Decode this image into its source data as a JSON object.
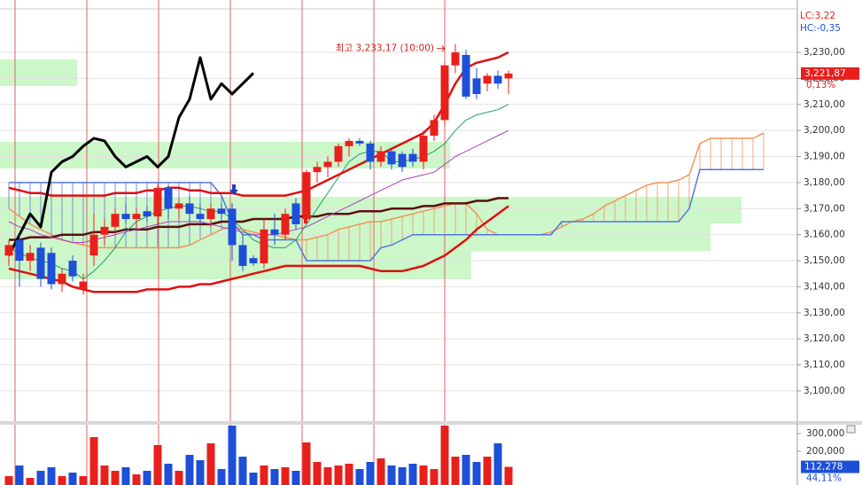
{
  "chart_data": [
    {
      "type": "candlestick",
      "categories": [
        null,
        null,
        null,
        null,
        null,
        null,
        null,
        null,
        null,
        null,
        null,
        null,
        null,
        null,
        null,
        null,
        null,
        null,
        null,
        null,
        null,
        null,
        null,
        null,
        null,
        null,
        null,
        null,
        null,
        null,
        null,
        null,
        null,
        null,
        null,
        null,
        null,
        null,
        null,
        null,
        null,
        null,
        null,
        null,
        null,
        null,
        null,
        null,
        null,
        null,
        null,
        null,
        null,
        null,
        null,
        null,
        null,
        null,
        null,
        null,
        null,
        null,
        null,
        null,
        null,
        null,
        null,
        null,
        null,
        null,
        null,
        null
      ],
      "open": [
        3152,
        3158,
        3150,
        3155,
        3153,
        3141,
        3150,
        3139,
        3152,
        3160,
        3163,
        3168,
        3166,
        3169,
        3167,
        3178,
        3170,
        3172,
        3168,
        3166,
        3170,
        3170,
        3156,
        3151,
        3149,
        3162,
        3160,
        3172,
        3166,
        3184,
        3186,
        3188,
        3194,
        3196,
        3195,
        3188,
        3192,
        3191,
        3191,
        3188,
        3198,
        3204,
        3225,
        3229,
        3220,
        3218,
        3221,
        3220,
        null,
        null,
        null,
        null,
        null,
        null,
        null,
        null,
        null,
        null,
        null,
        null,
        null,
        null,
        null,
        null,
        null,
        null,
        null,
        null,
        null,
        null,
        null,
        null
      ],
      "high": [
        3158,
        3160,
        3156,
        3157,
        3155,
        3147,
        3152,
        3145,
        3168,
        3166,
        3170,
        3172,
        3170,
        3171,
        3179,
        3179,
        3174,
        3175,
        3172,
        3172,
        3172,
        3172,
        3160,
        3152,
        3166,
        3168,
        3170,
        3174,
        3185,
        3188,
        3190,
        3195,
        3197,
        3197,
        3196,
        3194,
        3193,
        3192,
        3193,
        3200,
        3206,
        3226,
        3233.17,
        3231,
        3224,
        3222,
        3223,
        3223,
        null,
        null,
        null,
        null,
        null,
        null,
        null,
        null,
        null,
        null,
        null,
        null,
        null,
        null,
        null,
        null,
        null,
        null,
        null,
        null,
        null,
        null,
        null,
        null
      ],
      "low": [
        3148,
        3140,
        3146,
        3140,
        3139,
        3138,
        3142,
        3137,
        3148,
        3156,
        3160,
        3164,
        3162,
        3165,
        3164,
        3166,
        3166,
        3165,
        3164,
        3163,
        3166,
        3150,
        3146,
        3148,
        3147,
        3156,
        3158,
        3162,
        3164,
        3180,
        3182,
        3186,
        3190,
        3194,
        3185,
        3186,
        3185,
        3184,
        3186,
        3185,
        3196,
        3202,
        3222,
        3212,
        3212,
        3215,
        3216,
        3214,
        null,
        null,
        null,
        null,
        null,
        null,
        null,
        null,
        null,
        null,
        null,
        null,
        null,
        null,
        null,
        null,
        null,
        null,
        null,
        null,
        null,
        null,
        null,
        null
      ],
      "close": [
        3156,
        3150,
        3153,
        3143,
        3141,
        3145,
        3144,
        3142,
        3160,
        3163,
        3168,
        3166,
        3168,
        3167,
        3178,
        3170,
        3172,
        3168,
        3166,
        3170,
        3168,
        3156,
        3148,
        3149,
        3162,
        3160,
        3168,
        3164,
        3184,
        3186,
        3188,
        3194,
        3196,
        3195,
        3188,
        3192,
        3187,
        3186,
        3188,
        3198,
        3204,
        3225,
        3230,
        3213,
        3214,
        3221,
        3218,
        3221.87,
        null,
        null,
        null,
        null,
        null,
        null,
        null,
        null,
        null,
        null,
        null,
        null,
        null,
        null,
        null,
        null,
        null,
        null,
        null,
        null,
        null,
        null,
        null,
        null
      ],
      "up_color": "#e8201c",
      "down_color": "#1d4fd8",
      "ylim": [
        3088.4,
        3250.1
      ],
      "yticks": [
        {
          "value": 3100,
          "label": "3,100,00"
        },
        {
          "value": 3110,
          "label": "3,110,00"
        },
        {
          "value": 3120,
          "label": "3,120,00"
        },
        {
          "value": 3130,
          "label": "3,130,00"
        },
        {
          "value": 3140,
          "label": "3,140,00"
        },
        {
          "value": 3150,
          "label": "3,150,00"
        },
        {
          "value": 3160,
          "label": "3,160,00"
        },
        {
          "value": 3170,
          "label": "3,170,00"
        },
        {
          "value": 3180,
          "label": "3,180,00"
        },
        {
          "value": 3190,
          "label": "3,190,00"
        },
        {
          "value": 3200,
          "label": "3,200,00"
        },
        {
          "value": 3210,
          "label": "3,210,00"
        },
        {
          "value": 3220,
          "label": "3,220,00"
        },
        {
          "value": 3230,
          "label": "3,230,00"
        }
      ],
      "grid": true,
      "cloud": {
        "span_a_color": "#f0955a",
        "span_b_color": "#5577dd",
        "span_a": [
          3170,
          3167,
          3164,
          3162,
          3160,
          3158,
          3157,
          3156,
          3155,
          3155,
          3155,
          3155,
          3155,
          3155,
          3155,
          3155,
          3155,
          3156,
          3158,
          3160,
          3162,
          3163,
          3162,
          3161,
          3160,
          3160,
          3159,
          3158,
          3158,
          3159,
          3160,
          3162,
          3163,
          3164,
          3165,
          3165,
          3166,
          3167,
          3168,
          3169,
          3170,
          3171,
          3172,
          3172,
          3168,
          3162,
          3160,
          3160,
          3160,
          3160,
          3160,
          3161,
          3163,
          3165,
          3166,
          3168,
          3171,
          3173,
          3175,
          3177,
          3179,
          3180,
          3180,
          3181,
          3183,
          3195,
          3197,
          3197,
          3197,
          3197,
          3197,
          3199
        ],
        "span_b": [
          3180,
          3180,
          3180,
          3180,
          3180,
          3180,
          3180,
          3180,
          3180,
          3180,
          3180,
          3180,
          3180,
          3180,
          3180,
          3180,
          3180,
          3180,
          3180,
          3180,
          3175,
          3165,
          3160,
          3160,
          3158,
          3158,
          3158,
          3158,
          3150,
          3150,
          3150,
          3150,
          3150,
          3150,
          3150,
          3155,
          3156,
          3158,
          3160,
          3160,
          3160,
          3160,
          3160,
          3160,
          3160,
          3160,
          3160,
          3160,
          3160,
          3160,
          3160,
          3160,
          3165,
          3165,
          3165,
          3165,
          3165,
          3165,
          3165,
          3165,
          3165,
          3165,
          3165,
          3165,
          3170,
          3185,
          3185,
          3185,
          3185,
          3185,
          3185,
          3185
        ]
      },
      "lines": [
        {
          "color": "#5a1010",
          "width": 2.5,
          "values": [
            3158,
            3158,
            3159,
            3159,
            3159,
            3160,
            3160,
            3160,
            3161,
            3161,
            3161,
            3162,
            3162,
            3162,
            3163,
            3163,
            3163,
            3164,
            3164,
            3164,
            3165,
            3165,
            3165,
            3166,
            3166,
            3166,
            3166,
            3167,
            3167,
            3167,
            3168,
            3168,
            3168,
            3169,
            3169,
            3169,
            3170,
            3170,
            3170,
            3171,
            3171,
            3172,
            3172,
            3172,
            3173,
            3173,
            3174,
            3174,
            null,
            null,
            null,
            null,
            null,
            null,
            null,
            null,
            null,
            null,
            null,
            null,
            null,
            null,
            null,
            null,
            null,
            null,
            null,
            null,
            null,
            null,
            null,
            null
          ]
        },
        {
          "color": "#b040c0",
          "width": 1,
          "values": [
            3165,
            3163,
            3162,
            3160,
            3159,
            3158,
            3157,
            3157,
            3158,
            3159,
            3160,
            3161,
            3162,
            3163,
            3164,
            3165,
            3165,
            3165,
            3165,
            3164,
            3163,
            3162,
            3161,
            3160,
            3160,
            3160,
            3161,
            3162,
            3163,
            3165,
            3167,
            3169,
            3171,
            3173,
            3175,
            3177,
            3179,
            3181,
            3182,
            3183,
            3184,
            3187,
            3190,
            3192,
            3194,
            3196,
            3198,
            3200,
            null,
            null,
            null,
            null,
            null,
            null,
            null,
            null,
            null,
            null,
            null,
            null,
            null,
            null,
            null,
            null,
            null,
            null,
            null,
            null,
            null,
            null,
            null,
            null
          ]
        },
        {
          "color": "#1e9e6e",
          "width": 1,
          "values": [
            3155,
            3153,
            3151,
            3150,
            3149,
            3147,
            3146,
            3143,
            3146,
            3150,
            3155,
            3161,
            3165,
            3167,
            3169,
            3170,
            3171,
            3171,
            3170,
            3169,
            3169,
            3166,
            3162,
            3158,
            3156,
            3155,
            3155,
            3158,
            3164,
            3170,
            3176,
            3182,
            3188,
            3191,
            3192,
            3192,
            3188,
            3188,
            3189,
            3190,
            3192,
            3195,
            3200,
            3204,
            3206,
            3207,
            3208,
            3210,
            null,
            null,
            null,
            null,
            null,
            null,
            null,
            null,
            null,
            null,
            null,
            null,
            null,
            null,
            null,
            null,
            null,
            null,
            null,
            null,
            null,
            null,
            null,
            null
          ]
        },
        {
          "color": "#dd1111",
          "width": 2.5,
          "values": [
            3178,
            3177,
            3176,
            3176,
            3175,
            3175,
            3175,
            3175,
            3175,
            3175,
            3176,
            3176,
            3176,
            3177,
            3177,
            3178,
            3178,
            3177,
            3177,
            3176,
            3176,
            3176,
            3175,
            3175,
            3175,
            3175,
            3175,
            3176,
            3177,
            3179,
            3181,
            3183,
            3185,
            3187,
            3189,
            3191,
            3193,
            3195,
            3197,
            3199,
            3203,
            3210,
            3218,
            3224,
            3226,
            3227,
            3228,
            3230,
            null,
            null,
            null,
            null,
            null,
            null,
            null,
            null,
            null,
            null,
            null,
            null,
            null,
            null,
            null,
            null,
            null,
            null,
            null,
            null,
            null,
            null,
            null,
            null
          ]
        },
        {
          "color": "#dd1111",
          "width": 2.5,
          "values": [
            3147,
            3146,
            3145,
            3144,
            3143,
            3142,
            3140,
            3139,
            3138,
            3138,
            3138,
            3138,
            3138,
            3139,
            3139,
            3139,
            3140,
            3140,
            3141,
            3141,
            3142,
            3143,
            3144,
            3145,
            3146,
            3147,
            3148,
            3148,
            3148,
            3148,
            3148,
            3148,
            3148,
            3148,
            3147,
            3146,
            3146,
            3146,
            3147,
            3148,
            3150,
            3152,
            3155,
            3158,
            3162,
            3165,
            3168,
            3171,
            null,
            null,
            null,
            null,
            null,
            null,
            null,
            null,
            null,
            null,
            null,
            null,
            null,
            null,
            null,
            null,
            null,
            null,
            null,
            null,
            null,
            null,
            null,
            null
          ]
        },
        {
          "color": "#000000",
          "width": 3,
          "values": [
            3152,
            3160,
            3168,
            3163,
            3184,
            3188,
            3190,
            3194,
            3197,
            3196,
            3190,
            3186,
            3188,
            3190,
            3186,
            3190,
            3205,
            3212,
            3228,
            3212,
            3218,
            3214,
            3218,
            3222,
            null,
            null,
            null,
            null,
            null,
            null,
            null,
            null,
            null,
            null,
            null,
            null,
            null,
            null,
            null,
            null,
            null,
            null,
            null,
            null,
            null,
            null,
            null,
            null,
            null,
            null,
            null,
            null,
            null,
            null,
            null,
            null,
            null,
            null,
            null,
            null,
            null,
            null,
            null,
            null,
            null,
            null,
            null,
            null,
            null,
            null,
            null,
            null
          ]
        }
      ],
      "annotation": "최고 3,233,17 (10:00)",
      "current_price": {
        "value": 3221.87,
        "label": "3,221,87"
      },
      "change_label": "0,13%",
      "lc_label": "LC:3,22",
      "hc_label": "HC:-0,35"
    },
    {
      "type": "bar",
      "values": [
        60000,
        120000,
        50000,
        90000,
        110000,
        60000,
        80000,
        60000,
        280000,
        120000,
        90000,
        110000,
        70000,
        90000,
        235000,
        130000,
        90000,
        180000,
        150000,
        245000,
        100000,
        345000,
        170000,
        80000,
        120000,
        100000,
        110000,
        90000,
        250000,
        140000,
        110000,
        120000,
        130000,
        100000,
        140000,
        160000,
        120000,
        110000,
        130000,
        120000,
        100000,
        345000,
        170000,
        180000,
        140000,
        170000,
        245000,
        112278
      ],
      "ylim": [
        10000,
        355000
      ],
      "yticks": [
        {
          "value": 300000,
          "label": "300,000"
        },
        {
          "value": 200000,
          "label": "200,000"
        }
      ],
      "last_value": {
        "value": 112278,
        "label": "112,278"
      },
      "ratio_label": "44,11%"
    }
  ]
}
